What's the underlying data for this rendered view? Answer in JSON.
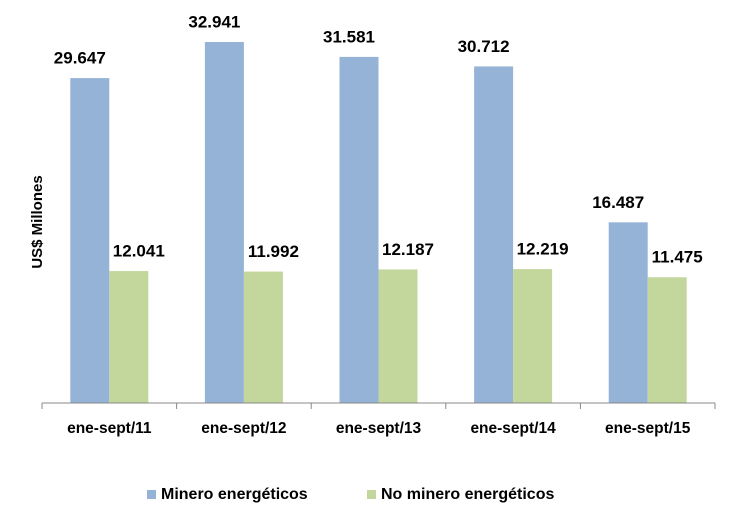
{
  "chart_data": {
    "type": "bar",
    "y_label": "US$ Millones",
    "categories": [
      "ene-sept/11",
      "ene-sept/12",
      "ene-sept/13",
      "ene-sept/14",
      "ene-sept/15"
    ],
    "series": [
      {
        "name": "Minero energéticos",
        "color": "#95b3d7",
        "values": [
          29647,
          32941,
          31581,
          30712,
          16487
        ],
        "value_labels": [
          "29.647",
          "32.941",
          "31.581",
          "30.712",
          "16.487"
        ]
      },
      {
        "name": "No minero energéticos",
        "color": "#c3d69b",
        "values": [
          12041,
          11992,
          12187,
          12219,
          11475
        ],
        "value_labels": [
          "12.041",
          "11.992",
          "12.187",
          "12.219",
          "11.475"
        ]
      }
    ],
    "legend": "bottom"
  }
}
